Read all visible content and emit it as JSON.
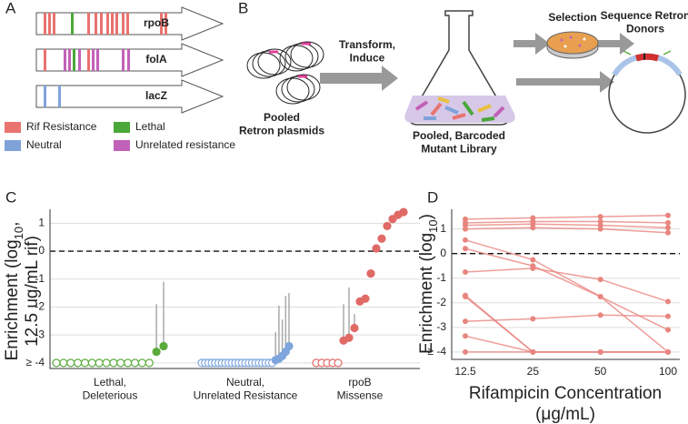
{
  "panel_a": {
    "label": "A",
    "genes": [
      "rpoB",
      "folA",
      "lacZ"
    ],
    "legend": [
      {
        "name": "Rif Resistance",
        "color": "#e8736f"
      },
      {
        "name": "Lethal",
        "color": "#4aa83a"
      },
      {
        "name": "Neutral",
        "color": "#7fa3d9"
      },
      {
        "name": "Unrelated resistance",
        "color": "#c261b9"
      }
    ]
  },
  "panel_b": {
    "label": "B",
    "transform": "Transform,\nInduce",
    "selection": "Selection",
    "sequence": "Sequence Retron\nDonors",
    "pooled": "Pooled\nRetron plasmids",
    "library": "Pooled, Barcoded\nMutant Library"
  },
  "chart_data": [
    {
      "type": "strip",
      "label": "C",
      "ylabel": [
        "Enrichment (log",
        "10",
        ",",
        "12.5 ug/mL rif)"
      ],
      "categories": [
        "Lethal,\nDeleterious",
        "Neutral,\nUnrelated Resistance",
        "rpoB\nMissense"
      ],
      "series": [
        {
          "color": "#5aaa3c",
          "values": [
            -4,
            -4,
            -4,
            -4,
            -4,
            -4,
            -4,
            -4,
            -4,
            -4,
            -4,
            -4,
            -4,
            -4,
            -3.6,
            -3.4
          ],
          "errors": [
            null,
            null,
            null,
            null,
            null,
            null,
            null,
            null,
            null,
            null,
            null,
            null,
            null,
            null,
            1.7,
            2.3
          ]
        },
        {
          "color": "#7ea6dc",
          "values": [
            -4,
            -4,
            -4,
            -4,
            -4,
            -4,
            -4,
            -4,
            -4,
            -4,
            -4,
            -4,
            -4,
            -4,
            -4,
            -4,
            -4,
            -4,
            -4,
            -4,
            -4,
            -4,
            -3.9,
            -3.85,
            -3.75,
            -3.6,
            -3.4
          ],
          "errors": [
            null,
            null,
            null,
            null,
            null,
            null,
            null,
            null,
            null,
            null,
            null,
            null,
            null,
            null,
            null,
            null,
            null,
            null,
            null,
            null,
            null,
            null,
            1.0,
            1.9,
            1.3,
            2.0,
            1.9
          ]
        },
        {
          "color": "#e06a66",
          "values": [
            -4,
            -4,
            -4,
            -4,
            -4,
            -3.2,
            -3.1,
            -2.75,
            -1.8,
            -1.7,
            -0.8,
            0.1,
            0.45,
            0.9,
            1.15,
            1.3,
            1.4
          ],
          "errors": [
            null,
            null,
            null,
            null,
            null,
            1.3,
            1.8,
            0.5,
            null,
            null,
            null,
            null,
            null,
            null,
            null,
            null,
            null
          ]
        }
      ],
      "ylim": [
        -4.2,
        1.5
      ],
      "yticks": [
        {
          "value": -4,
          "label": "≥ -4"
        },
        -3,
        -2,
        -1,
        0,
        1
      ],
      "grid": true,
      "dashed_line": 0
    },
    {
      "type": "line",
      "label": "D",
      "ylabel": [
        "Enrichment (log",
        "10",
        ")"
      ],
      "xlabel": "Rifampicin Concentration\n(μg/mL)",
      "categories": [
        "12.5",
        "25",
        "50",
        "100"
      ],
      "color": "#e8857f",
      "series": [
        {
          "values": [
            1.4,
            1.45,
            1.5,
            1.55
          ]
        },
        {
          "values": [
            1.25,
            1.3,
            1.3,
            1.25
          ]
        },
        {
          "values": [
            1.15,
            1.2,
            1.15,
            1.05
          ]
        },
        {
          "values": [
            1.0,
            1.05,
            1.0,
            0.85
          ]
        },
        {
          "values": [
            0.55,
            -0.25,
            -1.75,
            -4
          ]
        },
        {
          "values": [
            0.2,
            -0.5,
            -1.75,
            -3.1
          ]
        },
        {
          "values": [
            -0.75,
            -0.6,
            -1.05,
            -1.95
          ]
        },
        {
          "values": [
            -1.7,
            -4,
            -4,
            -4
          ]
        },
        {
          "values": [
            -1.75,
            -4,
            -4,
            -4
          ]
        },
        {
          "values": [
            -2.75,
            -2.65,
            -2.5,
            -2.55
          ]
        },
        {
          "values": [
            -3.35,
            -4,
            -4,
            -4
          ]
        },
        {
          "values": [
            -4,
            -4,
            -4,
            -4
          ]
        }
      ],
      "ylim": [
        -4.3,
        1.8
      ],
      "yticks": [
        {
          "value": -4,
          "label": "≥ -4"
        },
        -3,
        -2,
        -1,
        0,
        1
      ],
      "grid": true,
      "dashed_line": 0
    }
  ]
}
